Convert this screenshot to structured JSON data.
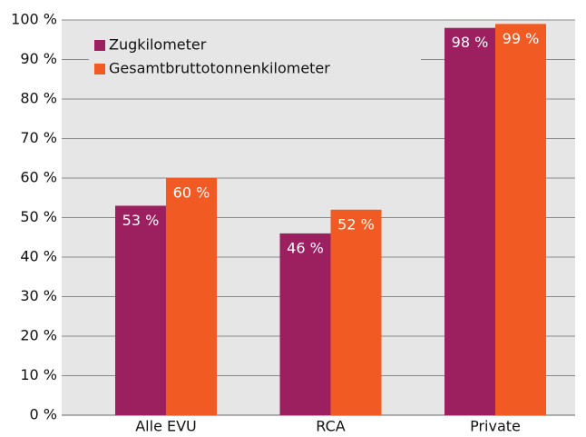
{
  "chart_data": {
    "type": "bar",
    "categories": [
      "Alle EVU",
      "RCA",
      "Private"
    ],
    "series": [
      {
        "name": "Zugkilometer",
        "color": "#9c1f5f",
        "values": [
          53,
          46,
          98
        ],
        "value_labels": [
          "53 %",
          "46 %",
          "98 %"
        ]
      },
      {
        "name": "Gesamtbruttotonnenkilometer",
        "color": "#f15a22",
        "values": [
          60,
          52,
          99
        ],
        "value_labels": [
          "60 %",
          "52 %",
          "99 %"
        ]
      }
    ],
    "ylim": [
      0,
      100
    ],
    "yticks": [
      {
        "value": 0,
        "label": "0 %"
      },
      {
        "value": 10,
        "label": "10 %"
      },
      {
        "value": 20,
        "label": "20 %"
      },
      {
        "value": 30,
        "label": "30 %"
      },
      {
        "value": 40,
        "label": "40 %"
      },
      {
        "value": 50,
        "label": "50 %"
      },
      {
        "value": 60,
        "label": "60 %"
      },
      {
        "value": 70,
        "label": "70 %"
      },
      {
        "value": 80,
        "label": "80 %"
      },
      {
        "value": 90,
        "label": "90 %"
      },
      {
        "value": 100,
        "label": "100 %"
      }
    ],
    "grid": true,
    "legend": "top-left"
  }
}
